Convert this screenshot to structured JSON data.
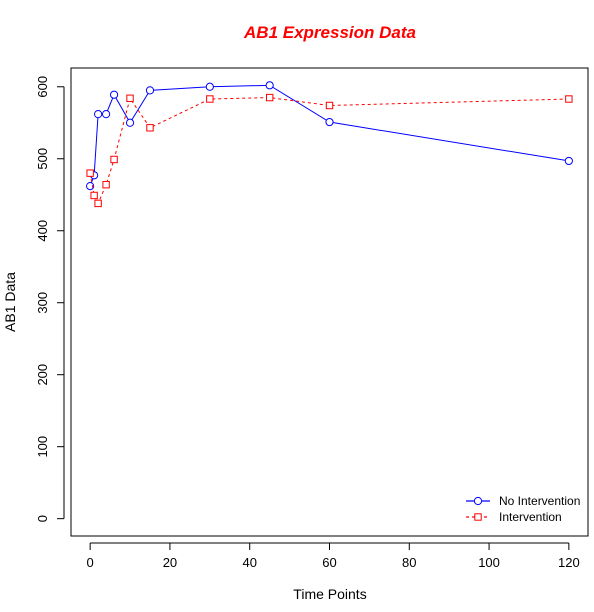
{
  "chart_data": {
    "type": "line",
    "title": "AB1 Expression Data",
    "title_color": "#ff0000",
    "xlabel": "Time Points",
    "ylabel": "AB1 Data",
    "xlim": [
      0,
      120
    ],
    "ylim": [
      0,
      600
    ],
    "xticks": [
      "0",
      "20",
      "40",
      "60",
      "80",
      "100",
      "120"
    ],
    "yticks": [
      "0",
      "100",
      "200",
      "300",
      "400",
      "500",
      "600"
    ],
    "grid": false,
    "legend_position": "bottom-right",
    "x": [
      0,
      1,
      2,
      4,
      6,
      10,
      15,
      30,
      45,
      60,
      120
    ],
    "series": [
      {
        "name": "No Intervention",
        "color": "#0000ff",
        "line_style": "solid",
        "marker": "circle",
        "values": [
          462,
          477,
          562,
          562,
          589,
          550,
          595,
          600,
          602,
          551,
          497
        ]
      },
      {
        "name": "Intervention",
        "color": "#ff0000",
        "line_style": "dashed",
        "marker": "square",
        "values": [
          480,
          449,
          438,
          464,
          499,
          584,
          543,
          583,
          585,
          574,
          583
        ]
      }
    ]
  }
}
